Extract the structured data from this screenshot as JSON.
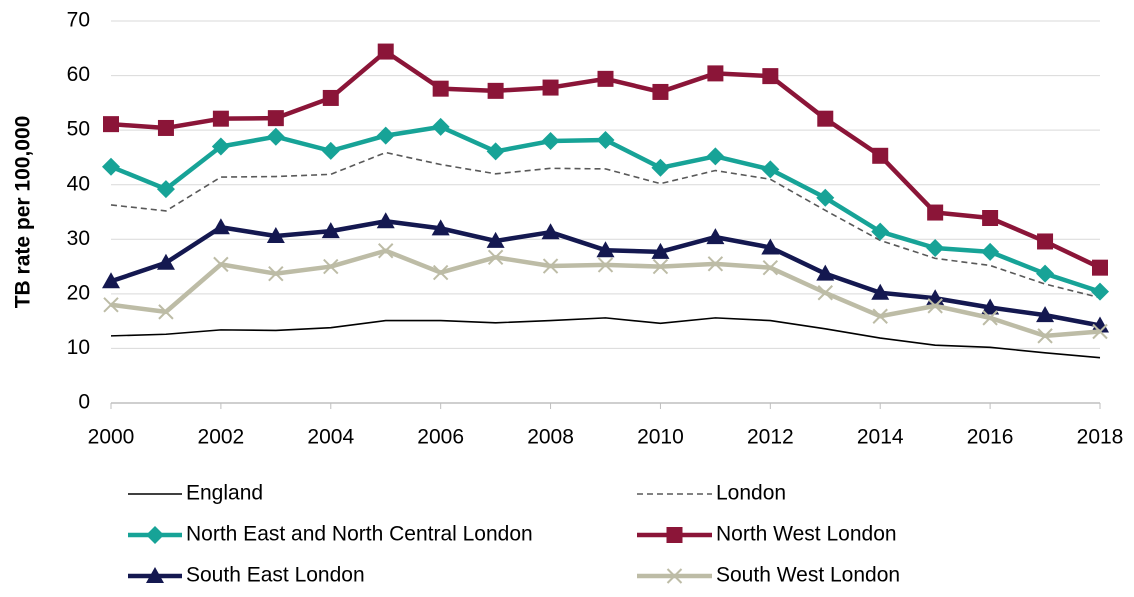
{
  "chart_data": {
    "type": "line",
    "y_label": "TB rate per 100,000",
    "x": [
      2000,
      2001,
      2002,
      2003,
      2004,
      2005,
      2006,
      2007,
      2008,
      2009,
      2010,
      2011,
      2012,
      2013,
      2014,
      2015,
      2016,
      2017,
      2018
    ],
    "xlim": [
      2000,
      2018
    ],
    "xticks": [
      2000,
      2002,
      2004,
      2006,
      2008,
      2010,
      2012,
      2014,
      2016,
      2018
    ],
    "ylim": [
      0,
      70
    ],
    "yticks": [
      0,
      10,
      20,
      30,
      40,
      50,
      60,
      70
    ],
    "grid": true,
    "legend": "bottom",
    "series": [
      {
        "name": "England",
        "color": "#000000",
        "marker": "none",
        "dash": "solid",
        "values": [
          12.3,
          12.6,
          13.4,
          13.3,
          13.8,
          15.1,
          15.1,
          14.7,
          15.1,
          15.6,
          14.6,
          15.6,
          15.1,
          13.6,
          11.9,
          10.6,
          10.2,
          9.2,
          8.3
        ]
      },
      {
        "name": "London",
        "color": "#595959",
        "marker": "none",
        "dash": "dashed",
        "values": [
          36.3,
          35.2,
          41.4,
          41.5,
          41.9,
          45.9,
          43.7,
          42.0,
          43.0,
          42.9,
          40.2,
          42.6,
          41.0,
          35.3,
          29.8,
          26.5,
          25.2,
          21.8,
          19.3
        ]
      },
      {
        "name": "North East and North Central London",
        "color": "#17a397",
        "marker": "diamond",
        "dash": "solid",
        "values": [
          43.3,
          39.2,
          47.0,
          48.8,
          46.2,
          49.0,
          50.6,
          46.1,
          48.0,
          48.2,
          43.1,
          45.2,
          42.8,
          37.6,
          31.4,
          28.4,
          27.7,
          23.7,
          20.4
        ]
      },
      {
        "name": "North West London",
        "color": "#8b1538",
        "marker": "square",
        "dash": "solid",
        "values": [
          51.1,
          50.4,
          52.1,
          52.2,
          55.9,
          64.4,
          57.6,
          57.2,
          57.8,
          59.4,
          57.0,
          60.4,
          59.9,
          52.1,
          45.3,
          34.9,
          33.9,
          29.6,
          24.8
        ]
      },
      {
        "name": "South East London",
        "color": "#141850",
        "marker": "triangle",
        "dash": "solid",
        "values": [
          22.3,
          25.7,
          32.2,
          30.6,
          31.5,
          33.3,
          32.0,
          29.7,
          31.3,
          28.0,
          27.7,
          30.4,
          28.5,
          23.7,
          20.2,
          19.2,
          17.5,
          16.1,
          14.2
        ]
      },
      {
        "name": "South West London",
        "color": "#bdbca6",
        "marker": "x",
        "dash": "solid",
        "values": [
          18.0,
          16.7,
          25.4,
          23.7,
          25.0,
          27.9,
          23.9,
          26.7,
          25.1,
          25.3,
          25.0,
          25.5,
          24.8,
          20.2,
          15.9,
          17.8,
          15.6,
          12.3,
          13.1
        ]
      }
    ]
  }
}
